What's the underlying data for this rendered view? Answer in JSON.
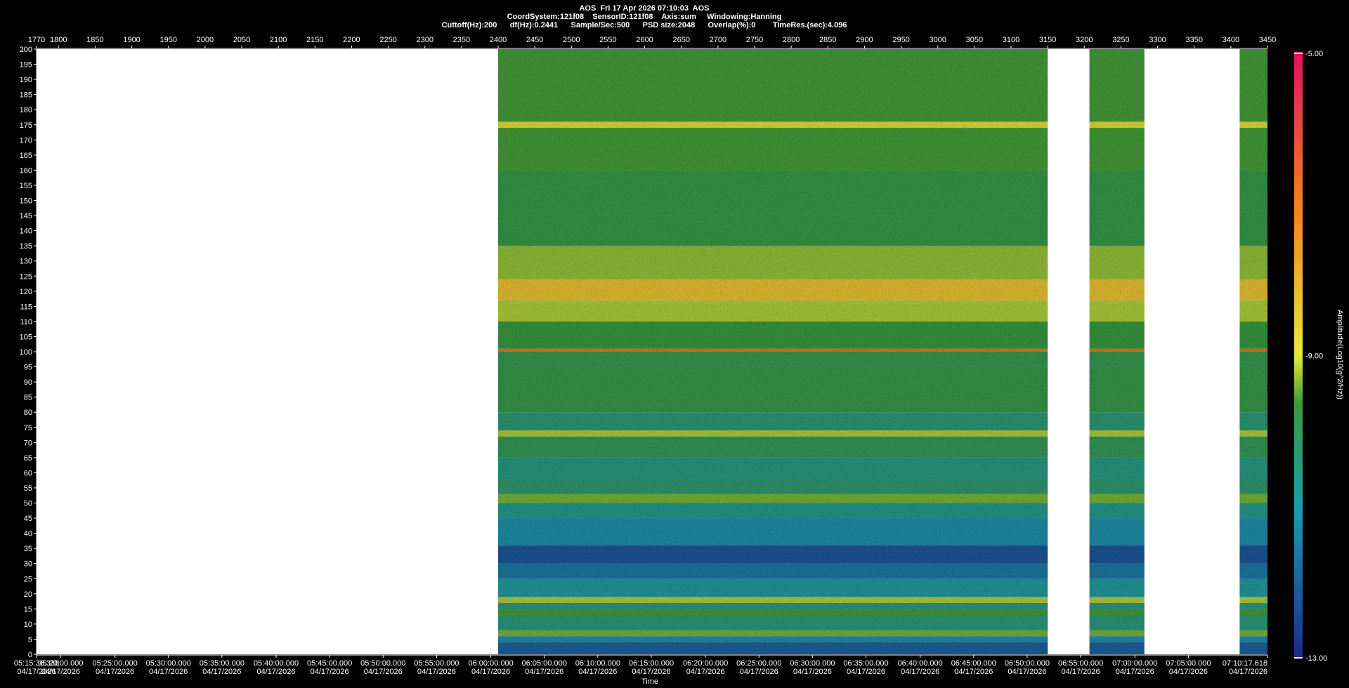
{
  "header": {
    "line1": "AOS  Fri 17 Apr 2026 07:10:03  AOS",
    "line2": "CoordSystem:121f08    SensorID:121f08    Axis:sum     Windowing:Hanning",
    "line3": "Cuttoff(Hz):200      df(Hz):0.2441      Sample/Sec:500      PSD size:2048      Overlap(%):0        TimeRes.(sec):4.096"
  },
  "chart_data": {
    "type": "heatmap",
    "title": "AOS  Fri 17 Apr 2026 07:10:03  AOS",
    "ylabel": "",
    "xlabel": "Time",
    "ylim": [
      0,
      200
    ],
    "y_ticks": [
      0,
      5,
      10,
      15,
      20,
      25,
      30,
      35,
      40,
      45,
      50,
      55,
      60,
      65,
      70,
      75,
      80,
      85,
      90,
      95,
      100,
      105,
      110,
      115,
      120,
      125,
      130,
      135,
      140,
      145,
      150,
      155,
      160,
      165,
      170,
      175,
      180,
      185,
      190,
      195,
      200
    ],
    "top_axis": {
      "range": [
        1770,
        3450
      ],
      "ticks": [
        1770,
        1800,
        1850,
        1900,
        1950,
        2000,
        2050,
        2100,
        2150,
        2200,
        2250,
        2300,
        2350,
        2400,
        2450,
        2500,
        2550,
        2600,
        2650,
        2700,
        2750,
        2800,
        2850,
        2900,
        2950,
        3000,
        3050,
        3100,
        3150,
        3200,
        3250,
        3300,
        3350,
        3400,
        3450
      ]
    },
    "time_ticks": [
      {
        "index": 1770,
        "time": "05:15:36.338",
        "date": "04/17/2026"
      },
      {
        "index": 1803,
        "time": "05:20:00.000",
        "date": "04/17/2026"
      },
      {
        "index": 1877,
        "time": "05:25:00.000",
        "date": "04/17/2026"
      },
      {
        "index": 1950,
        "time": "05:30:00.000",
        "date": "04/17/2026"
      },
      {
        "index": 2023,
        "time": "05:35:00.000",
        "date": "04/17/2026"
      },
      {
        "index": 2097,
        "time": "05:40:00.000",
        "date": "04/17/2026"
      },
      {
        "index": 2170,
        "time": "05:45:00.000",
        "date": "04/17/2026"
      },
      {
        "index": 2243,
        "time": "05:50:00.000",
        "date": "04/17/2026"
      },
      {
        "index": 2316,
        "time": "05:55:00.000",
        "date": "04/17/2026"
      },
      {
        "index": 2390,
        "time": "06:00:00.000",
        "date": "04/17/2026"
      },
      {
        "index": 2463,
        "time": "06:05:00.000",
        "date": "04/17/2026"
      },
      {
        "index": 2536,
        "time": "06:10:00.000",
        "date": "04/17/2026"
      },
      {
        "index": 2609,
        "time": "06:15:00.000",
        "date": "04/17/2026"
      },
      {
        "index": 2683,
        "time": "06:20:00.000",
        "date": "04/17/2026"
      },
      {
        "index": 2756,
        "time": "06:25:00.000",
        "date": "04/17/2026"
      },
      {
        "index": 2829,
        "time": "06:30:00.000",
        "date": "04/17/2026"
      },
      {
        "index": 2902,
        "time": "06:35:00.000",
        "date": "04/17/2026"
      },
      {
        "index": 2976,
        "time": "06:40:00.000",
        "date": "04/17/2026"
      },
      {
        "index": 3049,
        "time": "06:45:00.000",
        "date": "04/17/2026"
      },
      {
        "index": 3122,
        "time": "06:50:00.000",
        "date": "04/17/2026"
      },
      {
        "index": 3195,
        "time": "06:55:00.000",
        "date": "04/17/2026"
      },
      {
        "index": 3269,
        "time": "07:00:00.000",
        "date": "04/17/2026"
      },
      {
        "index": 3342,
        "time": "07:05:00.000",
        "date": "04/17/2026"
      },
      {
        "index": 3450,
        "time": "07:10:17.618",
        "date": "04/17/2026"
      }
    ],
    "data_segments": [
      [
        2400,
        3150
      ],
      [
        3207,
        3282
      ],
      [
        3412,
        3450
      ]
    ],
    "bands": [
      {
        "freq": [
          0,
          4
        ],
        "level": -12.0
      },
      {
        "freq": [
          4,
          6
        ],
        "level": -11.2
      },
      {
        "freq": [
          6,
          8
        ],
        "level": -9.4
      },
      {
        "freq": [
          8,
          13
        ],
        "level": -10.4
      },
      {
        "freq": [
          13,
          15
        ],
        "level": -9.6
      },
      {
        "freq": [
          15,
          17
        ],
        "level": -10.4
      },
      {
        "freq": [
          17,
          19
        ],
        "level": -9.2
      },
      {
        "freq": [
          19,
          25
        ],
        "level": -10.8
      },
      {
        "freq": [
          25,
          30
        ],
        "level": -11.6
      },
      {
        "freq": [
          30,
          36
        ],
        "level": -12.2
      },
      {
        "freq": [
          36,
          45
        ],
        "level": -11.2
      },
      {
        "freq": [
          45,
          50
        ],
        "level": -10.6
      },
      {
        "freq": [
          50,
          53
        ],
        "level": -9.4
      },
      {
        "freq": [
          53,
          58
        ],
        "level": -10.2
      },
      {
        "freq": [
          58,
          65
        ],
        "level": -10.5
      },
      {
        "freq": [
          65,
          72
        ],
        "level": -10.0
      },
      {
        "freq": [
          72,
          74
        ],
        "level": -9.2
      },
      {
        "freq": [
          74,
          80
        ],
        "level": -10.3
      },
      {
        "freq": [
          80,
          95
        ],
        "level": -9.8
      },
      {
        "freq": [
          95,
          100
        ],
        "level": -9.9
      },
      {
        "freq": [
          100,
          101
        ],
        "level": -6.8
      },
      {
        "freq": [
          101,
          110
        ],
        "level": -9.7
      },
      {
        "freq": [
          110,
          117
        ],
        "level": -9.2
      },
      {
        "freq": [
          117,
          124
        ],
        "level": -8.3
      },
      {
        "freq": [
          124,
          135
        ],
        "level": -9.3
      },
      {
        "freq": [
          135,
          145
        ],
        "level": -9.8
      },
      {
        "freq": [
          145,
          160
        ],
        "level": -9.8
      },
      {
        "freq": [
          160,
          174
        ],
        "level": -9.6
      },
      {
        "freq": [
          174,
          176
        ],
        "level": -8.8
      },
      {
        "freq": [
          176,
          200
        ],
        "level": -9.6
      }
    ],
    "colorscale": {
      "label": "Amplitude(Log10(g^2/Hz))",
      "ticks": [
        "-5.00",
        "-9.00",
        "-13.00"
      ],
      "range": [
        -13,
        -5
      ],
      "colors": [
        "#1a2a8a",
        "#1f9bb0",
        "#3a9a3a",
        "#e8e83a",
        "#f08020",
        "#e01060"
      ]
    }
  }
}
